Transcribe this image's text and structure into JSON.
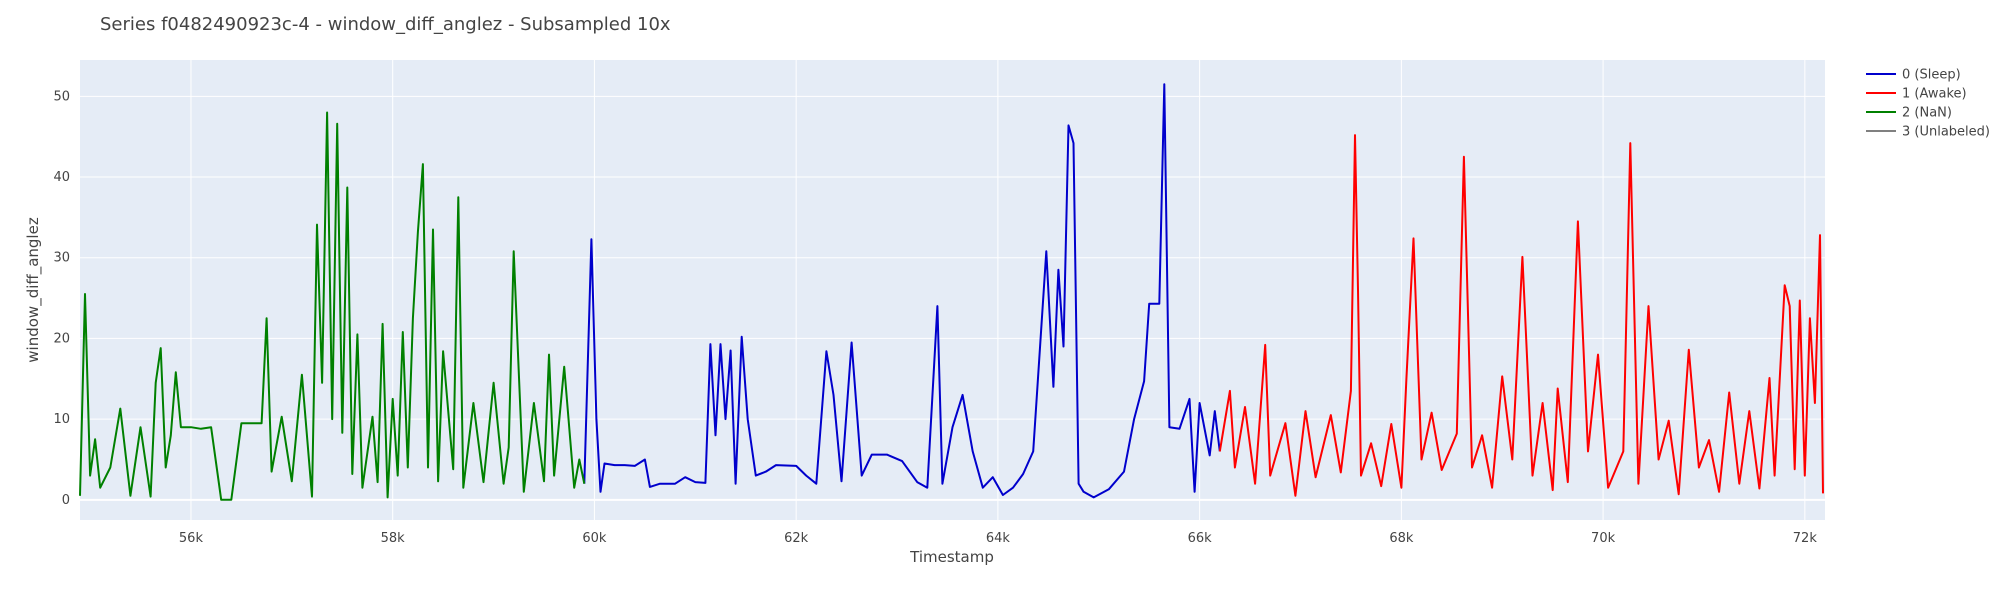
{
  "chart_data": {
    "type": "line",
    "title": "Series f0482490923c-4 - window_diff_anglez - Subsampled 10x",
    "xlabel": "Timestamp",
    "ylabel": "window_diff_anglez",
    "xlim": [
      54900,
      72200
    ],
    "ylim": [
      -2.5,
      54.5
    ],
    "x_ticks": [
      56000,
      58000,
      60000,
      62000,
      64000,
      66000,
      68000,
      70000,
      72000
    ],
    "x_tick_labels": [
      "56k",
      "58k",
      "60k",
      "62k",
      "64k",
      "66k",
      "68k",
      "70k",
      "72k"
    ],
    "y_ticks": [
      0,
      10,
      20,
      30,
      40,
      50
    ],
    "y_tick_labels": [
      "0",
      "10",
      "20",
      "30",
      "40",
      "50"
    ],
    "grid": true,
    "legend_position": "top-right",
    "series": [
      {
        "name": "0 (Sleep)",
        "color": "#0000cc",
        "points": [
          [
            59900,
            2
          ],
          [
            59970,
            32.3
          ],
          [
            60020,
            10
          ],
          [
            60060,
            1
          ],
          [
            60100,
            4.5
          ],
          [
            60200,
            4.3
          ],
          [
            60300,
            4.3
          ],
          [
            60400,
            4.2
          ],
          [
            60500,
            5
          ],
          [
            60550,
            1.6
          ],
          [
            60650,
            2
          ],
          [
            60800,
            2
          ],
          [
            60900,
            2.8
          ],
          [
            61000,
            2.2
          ],
          [
            61100,
            2.1
          ],
          [
            61150,
            19.3
          ],
          [
            61200,
            8
          ],
          [
            61250,
            19.3
          ],
          [
            61300,
            10
          ],
          [
            61350,
            18.5
          ],
          [
            61400,
            2
          ],
          [
            61460,
            20.2
          ],
          [
            61520,
            10
          ],
          [
            61600,
            3
          ],
          [
            61700,
            3.5
          ],
          [
            61800,
            4.3
          ],
          [
            62000,
            4.2
          ],
          [
            62100,
            3
          ],
          [
            62200,
            2
          ],
          [
            62300,
            18.4
          ],
          [
            62370,
            13
          ],
          [
            62450,
            2.3
          ],
          [
            62550,
            19.5
          ],
          [
            62650,
            3
          ],
          [
            62750,
            5.6
          ],
          [
            62900,
            5.6
          ],
          [
            63050,
            4.8
          ],
          [
            63200,
            2.2
          ],
          [
            63300,
            1.5
          ],
          [
            63400,
            24
          ],
          [
            63450,
            2
          ],
          [
            63550,
            9
          ],
          [
            63650,
            13
          ],
          [
            63750,
            6
          ],
          [
            63850,
            1.5
          ],
          [
            63950,
            2.8
          ],
          [
            64050,
            0.6
          ],
          [
            64150,
            1.5
          ],
          [
            64250,
            3.2
          ],
          [
            64350,
            6
          ],
          [
            64480,
            30.8
          ],
          [
            64550,
            14
          ],
          [
            64600,
            28.5
          ],
          [
            64650,
            19
          ],
          [
            64700,
            46.4
          ],
          [
            64750,
            44.2
          ],
          [
            64800,
            2
          ],
          [
            64850,
            1
          ],
          [
            64950,
            0.3
          ],
          [
            65100,
            1.3
          ],
          [
            65250,
            3.5
          ],
          [
            65350,
            10
          ],
          [
            65450,
            14.7
          ],
          [
            65500,
            24.3
          ],
          [
            65600,
            24.3
          ],
          [
            65650,
            51.5
          ],
          [
            65700,
            9
          ],
          [
            65800,
            8.8
          ],
          [
            65900,
            12.5
          ],
          [
            65950,
            1
          ],
          [
            66000,
            12
          ],
          [
            66100,
            5.5
          ],
          [
            66150,
            11
          ],
          [
            66200,
            6
          ]
        ]
      },
      {
        "name": "1 (Awake)",
        "color": "#ff0000",
        "points": [
          [
            66200,
            6
          ],
          [
            66300,
            13.5
          ],
          [
            66350,
            4
          ],
          [
            66450,
            11.5
          ],
          [
            66550,
            2
          ],
          [
            66650,
            19.2
          ],
          [
            66700,
            3
          ],
          [
            66850,
            9.5
          ],
          [
            66950,
            0.5
          ],
          [
            67050,
            11
          ],
          [
            67150,
            2.8
          ],
          [
            67300,
            10.5
          ],
          [
            67400,
            3.4
          ],
          [
            67500,
            13.5
          ],
          [
            67540,
            45.2
          ],
          [
            67570,
            26
          ],
          [
            67600,
            3
          ],
          [
            67700,
            7
          ],
          [
            67800,
            1.7
          ],
          [
            67900,
            9.4
          ],
          [
            68000,
            1.5
          ],
          [
            68050,
            15
          ],
          [
            68120,
            32.4
          ],
          [
            68200,
            5
          ],
          [
            68300,
            10.8
          ],
          [
            68400,
            3.7
          ],
          [
            68550,
            8.2
          ],
          [
            68620,
            42.5
          ],
          [
            68700,
            4
          ],
          [
            68800,
            8
          ],
          [
            68900,
            1.5
          ],
          [
            69000,
            15.3
          ],
          [
            69100,
            5
          ],
          [
            69200,
            30.1
          ],
          [
            69300,
            3
          ],
          [
            69400,
            12
          ],
          [
            69500,
            1.2
          ],
          [
            69550,
            13.8
          ],
          [
            69650,
            2.2
          ],
          [
            69750,
            34.5
          ],
          [
            69850,
            6
          ],
          [
            69950,
            18
          ],
          [
            70050,
            1.5
          ],
          [
            70200,
            6
          ],
          [
            70270,
            44.2
          ],
          [
            70350,
            2
          ],
          [
            70450,
            24
          ],
          [
            70550,
            5
          ],
          [
            70650,
            9.8
          ],
          [
            70750,
            0.7
          ],
          [
            70850,
            18.6
          ],
          [
            70950,
            4
          ],
          [
            71050,
            7.4
          ],
          [
            71150,
            1
          ],
          [
            71250,
            13.3
          ],
          [
            71350,
            2
          ],
          [
            71450,
            11
          ],
          [
            71550,
            1.4
          ],
          [
            71650,
            15.1
          ],
          [
            71700,
            3
          ],
          [
            71800,
            26.6
          ],
          [
            71850,
            24
          ],
          [
            71900,
            3.8
          ],
          [
            71950,
            24.7
          ],
          [
            72000,
            3
          ],
          [
            72050,
            22.5
          ],
          [
            72100,
            12
          ],
          [
            72150,
            32.8
          ],
          [
            72180,
            0.8
          ]
        ]
      },
      {
        "name": "2 (NaN)",
        "color": "#008000",
        "points": [
          [
            54900,
            0.5
          ],
          [
            54950,
            25.5
          ],
          [
            55000,
            3
          ],
          [
            55050,
            7.5
          ],
          [
            55100,
            1.5
          ],
          [
            55200,
            4
          ],
          [
            55300,
            11.3
          ],
          [
            55400,
            0.5
          ],
          [
            55500,
            9
          ],
          [
            55600,
            0.4
          ],
          [
            55650,
            14.5
          ],
          [
            55700,
            18.8
          ],
          [
            55750,
            4
          ],
          [
            55800,
            8
          ],
          [
            55850,
            15.8
          ],
          [
            55900,
            9
          ],
          [
            56000,
            9
          ],
          [
            56100,
            8.8
          ],
          [
            56200,
            9
          ],
          [
            56300,
            0
          ],
          [
            56400,
            0
          ],
          [
            56500,
            9.5
          ],
          [
            56600,
            9.5
          ],
          [
            56700,
            9.5
          ],
          [
            56750,
            22.5
          ],
          [
            56800,
            3.5
          ],
          [
            56900,
            10.3
          ],
          [
            57000,
            2.3
          ],
          [
            57100,
            15.5
          ],
          [
            57200,
            0.4
          ],
          [
            57250,
            34.1
          ],
          [
            57300,
            14.5
          ],
          [
            57350,
            48
          ],
          [
            57400,
            10
          ],
          [
            57450,
            46.6
          ],
          [
            57500,
            8.3
          ],
          [
            57550,
            38.7
          ],
          [
            57600,
            3.2
          ],
          [
            57650,
            20.5
          ],
          [
            57700,
            1.5
          ],
          [
            57800,
            10.3
          ],
          [
            57850,
            2.2
          ],
          [
            57900,
            21.8
          ],
          [
            57950,
            0.3
          ],
          [
            58000,
            12.5
          ],
          [
            58050,
            3
          ],
          [
            58100,
            20.8
          ],
          [
            58150,
            4
          ],
          [
            58200,
            22.5
          ],
          [
            58250,
            33.2
          ],
          [
            58300,
            41.6
          ],
          [
            58350,
            4
          ],
          [
            58400,
            33.5
          ],
          [
            58450,
            2.3
          ],
          [
            58500,
            18.4
          ],
          [
            58600,
            3.8
          ],
          [
            58650,
            37.5
          ],
          [
            58700,
            1.5
          ],
          [
            58800,
            12
          ],
          [
            58900,
            2.2
          ],
          [
            59000,
            14.5
          ],
          [
            59100,
            2
          ],
          [
            59150,
            6.5
          ],
          [
            59200,
            30.8
          ],
          [
            59300,
            1
          ],
          [
            59400,
            12
          ],
          [
            59500,
            2.3
          ],
          [
            59550,
            18
          ],
          [
            59600,
            3
          ],
          [
            59700,
            16.5
          ],
          [
            59800,
            1.5
          ],
          [
            59850,
            5
          ],
          [
            59900,
            2
          ]
        ]
      },
      {
        "name": "3 (Unlabeled)",
        "color": "#808080",
        "points": []
      }
    ]
  }
}
